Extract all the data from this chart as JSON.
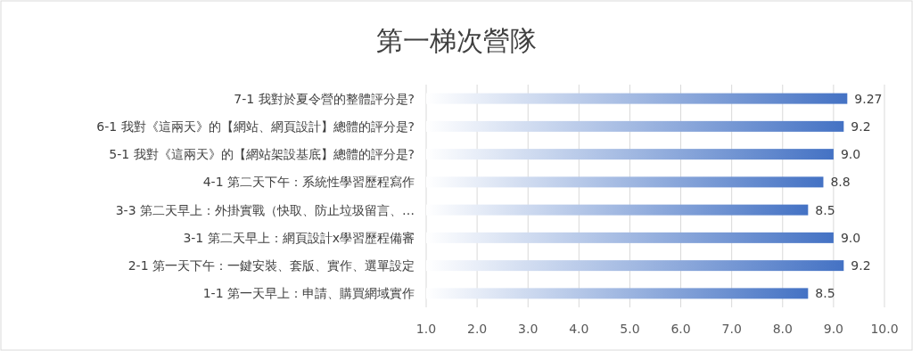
{
  "chart_data": {
    "type": "bar",
    "orientation": "horizontal",
    "title": "第一梯次營隊",
    "categories": [
      "7-1 我對於夏令營的整體評分是?",
      "6-1 我對《這兩天》的【網站、網頁設計】總體的評分是?",
      "5-1 我對《這兩天》的【網站架設基底】總體的評分是?",
      "4-1 第二天下午：系統性學習歷程寫作",
      "3-3 第二天早上：外掛實戰（快取、防止垃圾留言、…",
      "3-1 第二天早上：網頁設計x學習歷程備審",
      "2-1 第一天下午：一鍵安裝、套版、實作、選單設定",
      "1-1 第一天早上：申請、購買網域實作"
    ],
    "values": [
      9.27,
      9.2,
      9.0,
      8.8,
      8.5,
      9.0,
      9.2,
      8.5
    ],
    "value_labels": [
      "9.27",
      "9.2",
      "9.0",
      "8.8",
      "8.5",
      "9.0",
      "9.2",
      "8.5"
    ],
    "color": "#4472c4",
    "xlim": [
      1,
      10
    ],
    "xticks": [
      {
        "value": 1,
        "label": "1.0"
      },
      {
        "value": 2,
        "label": "2.0"
      },
      {
        "value": 3,
        "label": "3.0"
      },
      {
        "value": 4,
        "label": "4.0"
      },
      {
        "value": 5,
        "label": "5.0"
      },
      {
        "value": 6,
        "label": "6.0"
      },
      {
        "value": 7,
        "label": "7.0"
      },
      {
        "value": 8,
        "label": "8.0"
      },
      {
        "value": 9,
        "label": "9.0"
      },
      {
        "value": 10,
        "label": "10.0"
      }
    ],
    "grid": "x"
  }
}
